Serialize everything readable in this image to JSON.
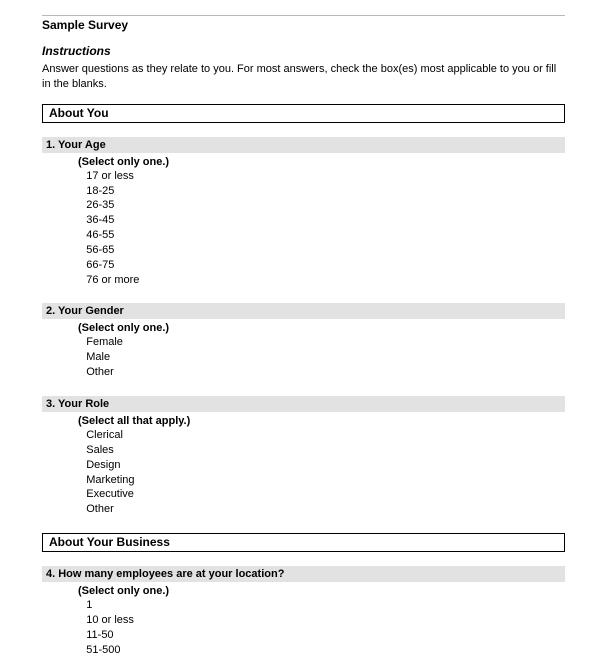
{
  "title": "Sample Survey",
  "instructions": {
    "heading": "Instructions",
    "text": "Answer questions as they relate to you. For most answers, check the box(es) most applicable to you or fill in the blanks."
  },
  "checkbox_prefix": "    ",
  "sections": [
    {
      "title": "About You",
      "questions": [
        {
          "number": "1.",
          "title": "Your Age",
          "hint": "(Select only one.)",
          "options": [
            "17 or less",
            "18-25",
            "26-35",
            "36-45",
            "46-55",
            "56-65",
            "66-75",
            "76 or more"
          ]
        },
        {
          "number": "2.",
          "title": "Your Gender",
          "hint": "(Select only one.)",
          "options": [
            "Female",
            "Male",
            "Other"
          ]
        },
        {
          "number": "3.",
          "title": "Your Role",
          "hint": "(Select all that apply.)",
          "options": [
            "Clerical",
            "Sales",
            "Design",
            "Marketing",
            "Executive",
            "Other"
          ]
        }
      ]
    },
    {
      "title": "About Your Business",
      "questions": [
        {
          "number": "4.",
          "title": "How many employees are at your location?",
          "hint": "(Select only one.)",
          "options": [
            "1",
            "10 or less",
            "11-50",
            "51-500"
          ]
        }
      ]
    }
  ],
  "colors": {
    "section_border": "#000000",
    "question_bg": "#e2e2e2",
    "hr": "#b8b8b8",
    "text": "#000000",
    "background": "#ffffff"
  }
}
